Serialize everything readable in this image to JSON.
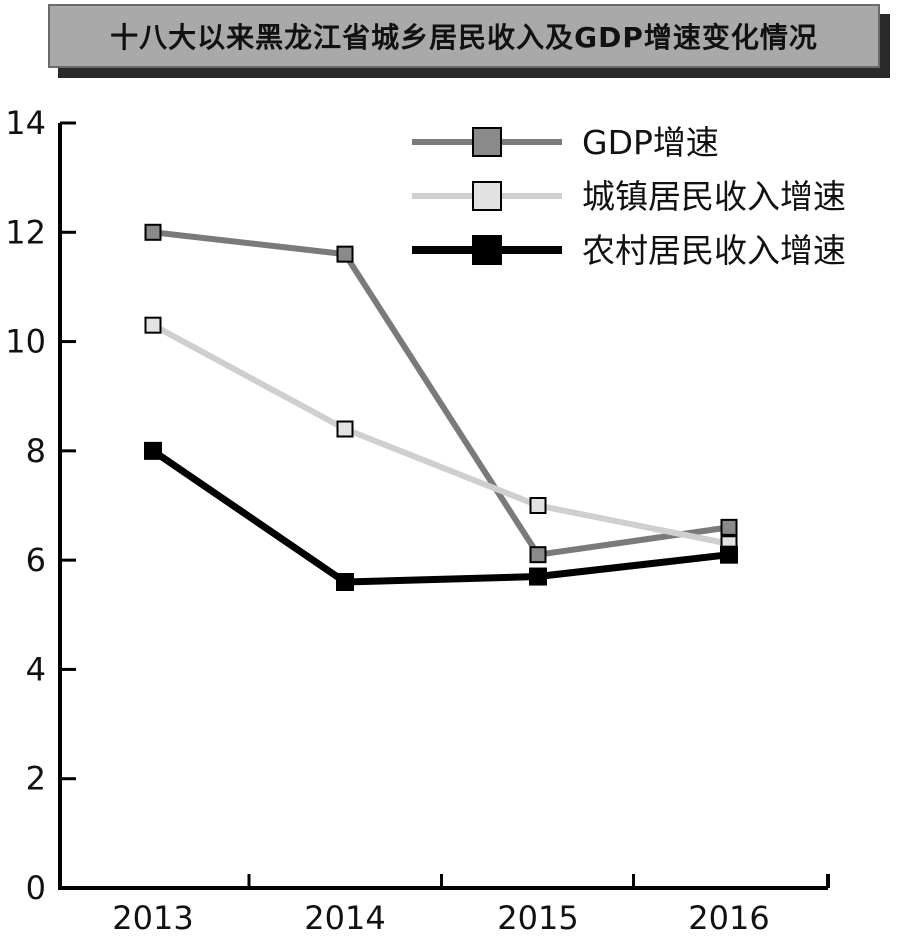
{
  "chart_data": {
    "type": "line",
    "title": "十八大以来黑龙江省城乡居民收入及GDP增速变化情况",
    "categories": [
      "2013",
      "2014",
      "2015",
      "2016"
    ],
    "series": [
      {
        "name": "GDP增速",
        "values": [
          12.0,
          11.6,
          6.1,
          6.6
        ],
        "color": "#7a7a7a",
        "marker_color": "#8a8a8a"
      },
      {
        "name": "城镇居民收入增速",
        "values": [
          10.3,
          8.4,
          7.0,
          6.3
        ],
        "color": "#cfcfcf",
        "marker_color": "#e2e2e2"
      },
      {
        "name": "农村居民收入增速",
        "values": [
          8.0,
          5.6,
          5.7,
          6.1
        ],
        "color": "#000000",
        "marker_color": "#000000"
      }
    ],
    "y_ticks": [
      "0",
      "2",
      "4",
      "6",
      "8",
      "10",
      "12",
      "14"
    ],
    "ylim": [
      0,
      14
    ],
    "xlabel": "",
    "ylabel": "",
    "grid": false,
    "legend_position": "top-right"
  }
}
